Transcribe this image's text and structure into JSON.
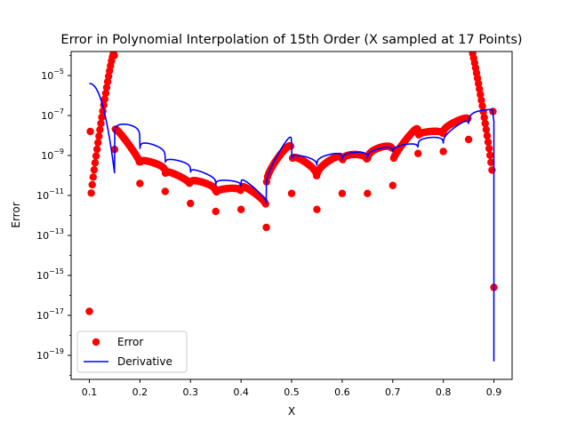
{
  "chart_data": {
    "type": "scatter",
    "title": "Error in Polynomial Interpolation of 15th Order (X sampled at 17 Points)",
    "xlabel": "X",
    "ylabel": "Error",
    "xlim": [
      0.064,
      0.936
    ],
    "ylim_log10": [
      -20.2,
      -3.8
    ],
    "yscale": "log",
    "grid": false,
    "x_ticks": [
      0.1,
      0.2,
      0.3,
      0.4,
      0.5,
      0.6,
      0.7,
      0.8,
      0.9
    ],
    "x_tick_labels": [
      "0.1",
      "0.2",
      "0.3",
      "0.4",
      "0.5",
      "0.6",
      "0.7",
      "0.8",
      "0.9"
    ],
    "y_tick_exponents": [
      -5,
      -7,
      -9,
      -11,
      -13,
      -15,
      -17,
      -19
    ],
    "y_tick_labels": [
      {
        "base": "10",
        "exp": "−5"
      },
      {
        "base": "10",
        "exp": "−7"
      },
      {
        "base": "10",
        "exp": "−9"
      },
      {
        "base": "10",
        "exp": "−11"
      },
      {
        "base": "10",
        "exp": "−13"
      },
      {
        "base": "10",
        "exp": "−15"
      },
      {
        "base": "10",
        "exp": "−17"
      },
      {
        "base": "10",
        "exp": "−19"
      }
    ],
    "legend": {
      "placement": "lower-left",
      "entries": [
        {
          "label": "Error",
          "marker": "circle",
          "color": "#ff0000"
        },
        {
          "label": "Derivative",
          "marker": "line",
          "color": "#0000ff"
        }
      ]
    },
    "series": [
      {
        "name": "Error",
        "style": "markers",
        "color": "#ff0000",
        "nodes_x": [
          0.1,
          0.15,
          0.2,
          0.25,
          0.3,
          0.35,
          0.4,
          0.45,
          0.5,
          0.55,
          0.6,
          0.65,
          0.7,
          0.75,
          0.8,
          0.85,
          0.9
        ],
        "node_dip_log10": [
          -16.8,
          -8.7,
          -10.4,
          -10.8,
          -11.4,
          -11.8,
          -11.7,
          -12.6,
          -10.9,
          -11.7,
          -10.9,
          -10.9,
          -10.5,
          -8.9,
          -8.8,
          -8.2,
          -15.6
        ],
        "segment_peak_log10": [
          -7.05,
          -8.35,
          -9.35,
          -10.0,
          -10.35,
          -10.65,
          -10.85,
          -9.05,
          -9.3,
          -9.25,
          -8.95,
          -8.6,
          -8.25,
          -7.8,
          -7.3,
          -6.2
        ],
        "x_start": 0.1,
        "x_end": 0.9,
        "left_edge_log10": -7.8,
        "right_edge_log10": -6.8
      },
      {
        "name": "Derivative",
        "style": "line",
        "color": "#0000ff",
        "nodes_x": [
          0.15,
          0.2,
          0.25,
          0.3,
          0.35,
          0.4,
          0.45,
          0.5,
          0.55,
          0.6,
          0.65,
          0.7,
          0.75,
          0.8,
          0.85
        ],
        "node_dip_log10": [
          -9.9,
          -10.1,
          -10.5,
          -10.8,
          -11.3,
          -11.4,
          -12.5,
          -10.3,
          -10.6,
          -10.3,
          -10.2,
          -9.9,
          -9.7,
          -9.6,
          -8.7
        ],
        "segment_peak_log10": [
          -7.45,
          -8.45,
          -9.25,
          -9.85,
          -10.25,
          -10.6,
          -8.85,
          -9.05,
          -8.95,
          -8.85,
          -8.65,
          -8.45,
          -8.1,
          -7.55,
          -6.7
        ],
        "start": [
          0.1,
          -5.4
        ],
        "end_drop": {
          "x_start": 0.9,
          "y_start_log10": -6.8,
          "x_end": 0.9,
          "y_end_log10": -19.3
        }
      }
    ]
  }
}
